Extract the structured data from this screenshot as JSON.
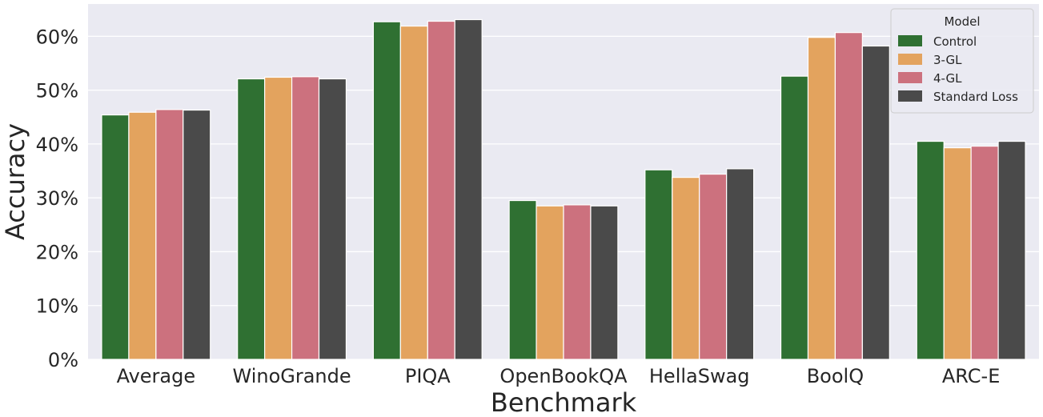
{
  "chart_data": {
    "type": "bar",
    "title": "",
    "xlabel": "Benchmark",
    "ylabel": "Accuracy",
    "categories": [
      "Average",
      "WinoGrande",
      "PIQA",
      "OpenBookQA",
      "HellaSwag",
      "BoolQ",
      "ARC-E"
    ],
    "series": [
      {
        "name": "Control",
        "color": "#2f7032",
        "values": [
          45.4,
          52.1,
          62.7,
          29.5,
          35.2,
          52.6,
          40.5
        ]
      },
      {
        "name": "3-GL",
        "color": "#e3a35e",
        "values": [
          45.9,
          52.4,
          61.9,
          28.5,
          33.8,
          59.8,
          39.3
        ]
      },
      {
        "name": "4-GL",
        "color": "#cc717e",
        "values": [
          46.4,
          52.5,
          62.8,
          28.7,
          34.4,
          60.7,
          39.6
        ]
      },
      {
        "name": "Standard Loss",
        "color": "#4a4a4a",
        "values": [
          46.3,
          52.1,
          63.1,
          28.5,
          35.4,
          58.2,
          40.5
        ]
      }
    ],
    "ylim": [
      0,
      66
    ],
    "yticks": [
      0,
      10,
      20,
      30,
      40,
      50,
      60
    ],
    "ytick_labels": [
      "0%",
      "10%",
      "20%",
      "30%",
      "40%",
      "50%",
      "60%"
    ],
    "legend": {
      "title": "Model",
      "placement": "top-right"
    },
    "grid": true,
    "colors": {
      "plot_bg": "#eaeaf2",
      "grid": "#ffffff",
      "text": "#262626"
    }
  }
}
